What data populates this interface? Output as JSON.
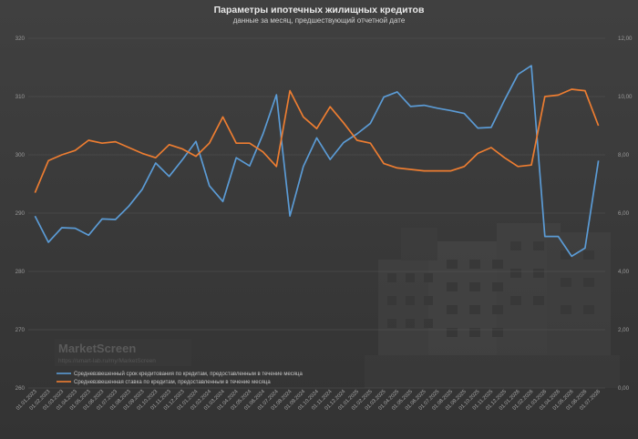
{
  "chart_data": {
    "type": "line",
    "title": "Параметры ипотечных жилищных кредитов",
    "subtitle": "данные за месяц, предшествующий отчетной дате",
    "x": [
      "01.01.2023",
      "01.02.2023",
      "01.03.2023",
      "01.04.2023",
      "01.05.2023",
      "01.06.2023",
      "01.07.2023",
      "01.08.2023",
      "01.09.2023",
      "01.10.2023",
      "01.11.2023",
      "01.12.2023",
      "01.01.2024",
      "01.02.2024",
      "01.03.2024",
      "01.04.2024",
      "01.05.2024",
      "01.06.2024",
      "01.07.2024",
      "01.08.2024",
      "01.09.2024",
      "01.10.2024",
      "01.11.2024",
      "01.12.2024",
      "01.01.2025",
      "01.02.2025",
      "01.03.2025",
      "01.04.2025",
      "01.05.2025",
      "01.06.2025",
      "01.07.2025",
      "01.08.2025",
      "01.09.2025",
      "01.10.2025",
      "01.11.2025",
      "01.12.2025",
      "01.01.2026",
      "01.02.2026",
      "01.03.2026",
      "01.04.2026",
      "01.05.2026",
      "01.06.2026",
      "01.07.2026"
    ],
    "series": [
      {
        "name": "Средневзвешенный срок кредитования по кредитам, предоставленным в течение месяца",
        "axis": "left",
        "color": "#5b9bd5",
        "values": [
          289.5,
          285,
          287.5,
          287.4,
          286.2,
          289,
          288.9,
          291.2,
          294.1,
          298.6,
          296.3,
          299.2,
          302.3,
          294.7,
          292,
          299.5,
          298.1,
          303.6,
          310.3,
          289.5,
          298,
          302.9,
          299.2,
          302.1,
          303.6,
          305.4,
          309.9,
          310.8,
          308.3,
          308.5,
          308,
          307.6,
          307.1,
          304.6,
          304.7,
          309.4,
          313.8,
          315.3,
          286,
          286,
          282.6,
          284,
          299
        ]
      },
      {
        "name": "Средневзвешенная ставка по кредитам, предоставленным в течение месяца",
        "axis": "right",
        "color": "#ed7d31",
        "values": [
          6.7,
          7.8,
          8,
          8.15,
          8.5,
          8.4,
          8.45,
          8.25,
          8.05,
          7.9,
          8.35,
          8.2,
          7.95,
          8.4,
          9.3,
          8.4,
          8.4,
          8.1,
          7.6,
          10.2,
          9.3,
          8.9,
          9.65,
          9.1,
          8.5,
          8.4,
          7.7,
          7.55,
          7.5,
          7.45,
          7.45,
          7.45,
          7.6,
          8.05,
          8.25,
          7.9,
          7.6,
          7.65,
          10,
          10.05,
          10.25,
          10.2,
          9
        ]
      }
    ],
    "y_left": {
      "min": 260,
      "max": 320,
      "ticks": [
        "260",
        "270",
        "280",
        "290",
        "300",
        "310",
        "320"
      ]
    },
    "y_right": {
      "min": 0,
      "max": 12,
      "ticks": [
        "0,00",
        "2,00",
        "4,00",
        "6,00",
        "8,00",
        "10,00",
        "12,00"
      ]
    },
    "grid": true,
    "legend_position": "bottom-left"
  },
  "watermark": {
    "name": "MarketScreen",
    "url": "https://smart-lab.ru/my/MarketScreen"
  }
}
